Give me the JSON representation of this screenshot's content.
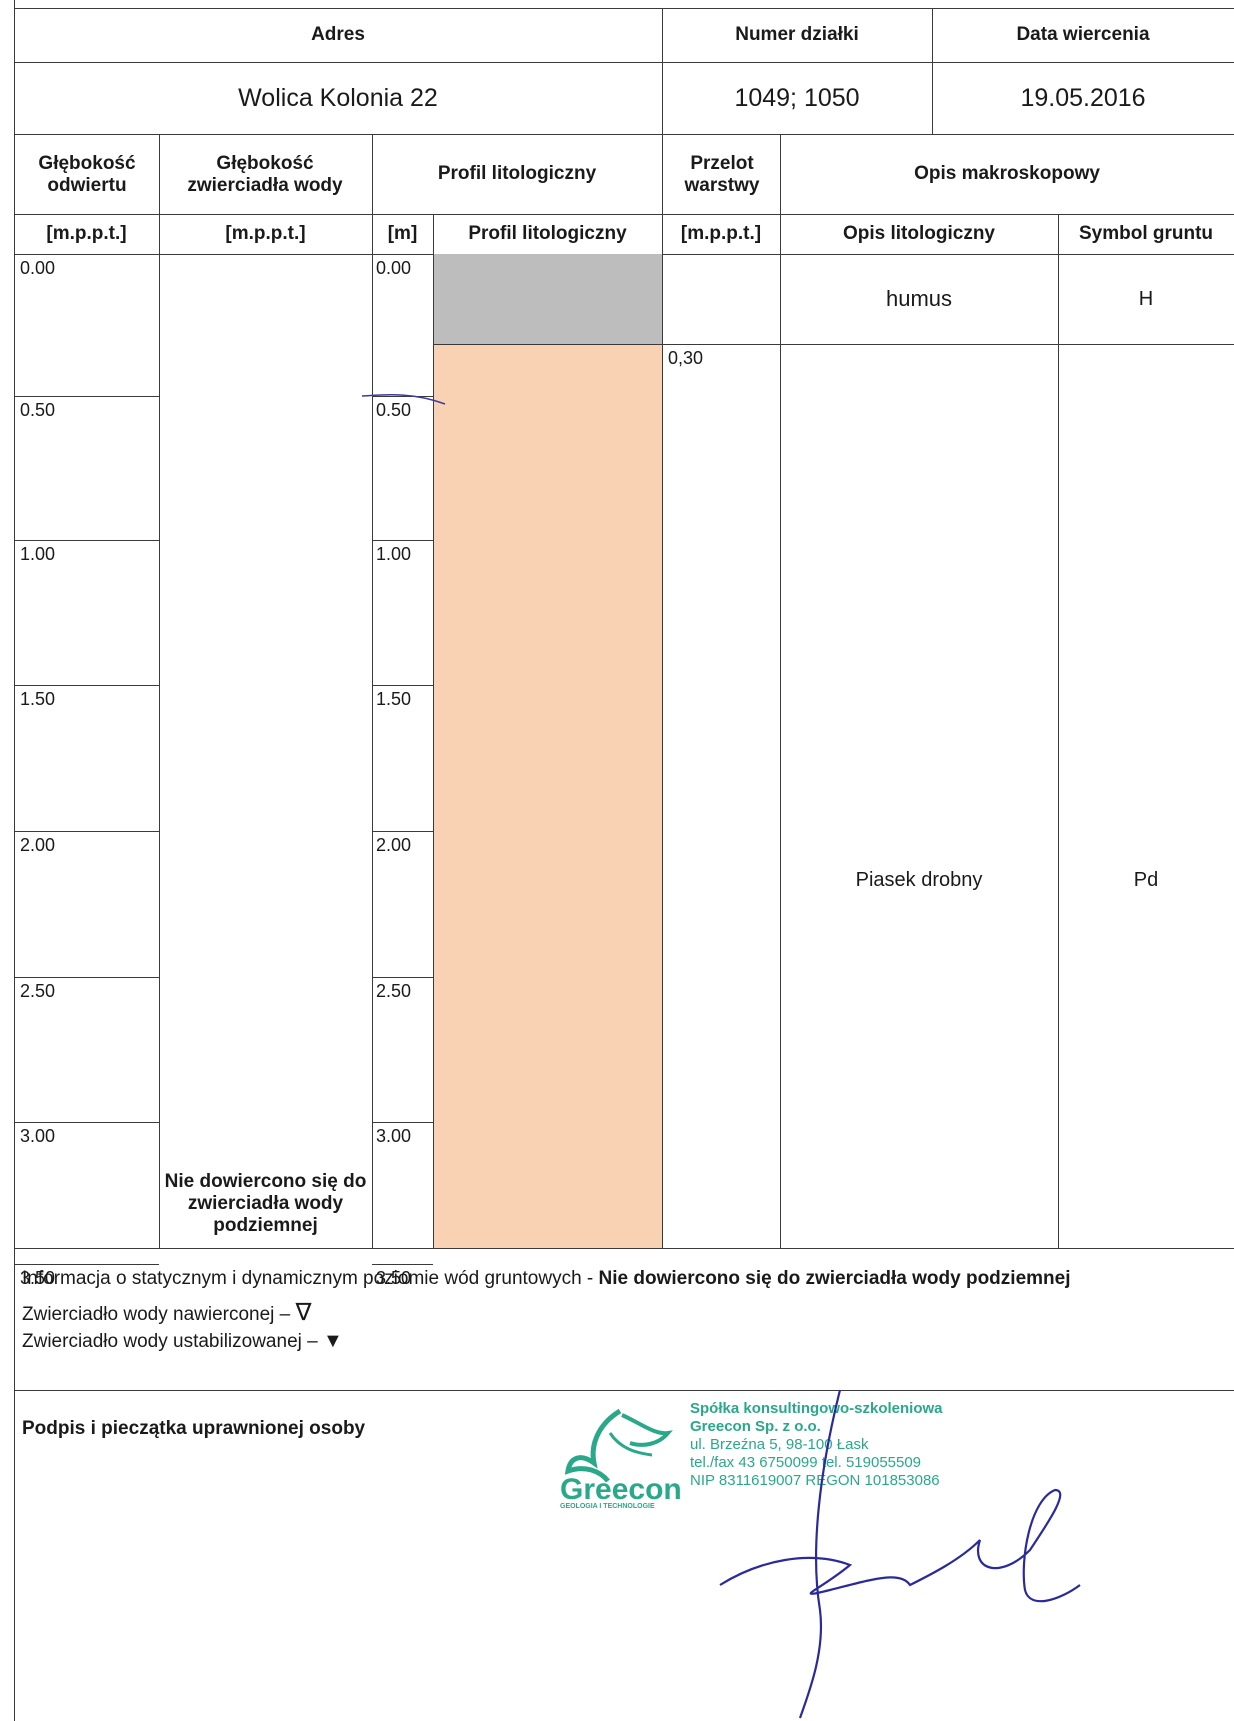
{
  "header": {
    "address_label": "Adres",
    "parcel_label": "Numer działki",
    "date_label": "Data wiercenia",
    "address_value": "Wolica Kolonia 22",
    "parcel_value": "1049; 1050",
    "date_value": "19.05.2016"
  },
  "columns": {
    "depth_bore": "Głębokość odwiertu",
    "depth_water": "Głębokość zwierciadła wody",
    "profile": "Profil litologiczny",
    "interval": "Przelot warstwy",
    "macro": "Opis makroskopowy",
    "unit_bore": "[m.p.p.t.]",
    "unit_water": "[m.p.p.t.]",
    "unit_m": "[m]",
    "profile_sub": "Profil litologiczny",
    "unit_interval": "[m.p.p.t.]",
    "lith_desc": "Opis litologiczny",
    "soil_symbol": "Symbol gruntu"
  },
  "depths": [
    "0.00",
    "0.50",
    "1.00",
    "1.50",
    "2.00",
    "2.50",
    "3.00",
    "3.50"
  ],
  "layers": [
    {
      "top": 0.0,
      "bottom": 0.3,
      "description": "humus",
      "symbol": "H",
      "color": "#bdbdbd"
    },
    {
      "top": 0.3,
      "bottom": 3.8,
      "description": "Piasek drobny",
      "symbol": "Pd",
      "color": "#f9d2b3"
    }
  ],
  "interval_marks": [
    "0,30"
  ],
  "water_note": "Nie dowiercono się do zwierciadła wody podziemnej",
  "legend": {
    "info_prefix": "Informacja o statycznym i dynamicznym poziomie wód gruntowych  - ",
    "info_bold": "Nie dowiercono się do zwierciadła wody podziemnej",
    "drilled": "Zwierciadło wody nawierconej – ",
    "drilled_symbol": "∇",
    "stabilized": "Zwierciadło wody ustabilizowanej – ",
    "stabilized_symbol": "▼"
  },
  "signature": {
    "label": "Podpis i pieczątka uprawnionej osoby",
    "stamp_lines": [
      "Spółka konsultingowo-szkoleniowa",
      "Greecon Sp. z o.o.",
      "ul. Brzeźna 5, 98-100 Łask",
      "tel./fax 43 6750099 tel. 519055509",
      "NIP 8311619007 REGON 101853086"
    ],
    "stamp_logo_text": "Greecon",
    "stamp_logo_small": "GEOLOGIA I TECHNOLOGIE"
  },
  "colors": {
    "humus": "#bdbdbd",
    "sand": "#f9d2b3",
    "stamp_green": "#2aa88a",
    "signature_ink": "#2a2a9a"
  }
}
